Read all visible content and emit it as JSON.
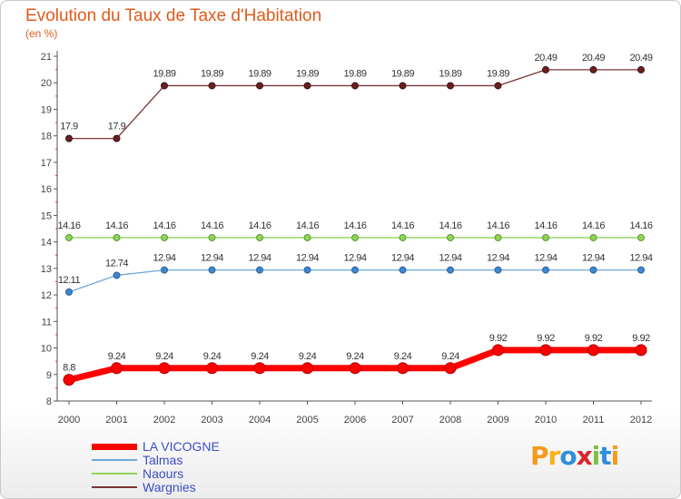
{
  "chart_data": {
    "type": "line",
    "title": "Evolution du Taux de Taxe d'Habitation",
    "subtitle": "(en %)",
    "xlabel": "",
    "ylabel": "",
    "categories": [
      "2000",
      "2001",
      "2002",
      "2003",
      "2004",
      "2005",
      "2006",
      "2007",
      "2008",
      "2009",
      "2010",
      "2011",
      "2012"
    ],
    "ylim": [
      8,
      21
    ],
    "yticks": [
      8,
      9,
      10,
      11,
      12,
      13,
      14,
      15,
      16,
      17,
      18,
      19,
      20,
      21
    ],
    "grid": false,
    "legend_position": "bottom-left",
    "series": [
      {
        "name": "LA VICOGNE",
        "color": "#ff0000",
        "labels": [
          "8.8",
          "9.24",
          "9.24",
          "9.24",
          "9.24",
          "9.24",
          "9.24",
          "9.24",
          "9.24",
          "9.92",
          "9.92",
          "9.92",
          "9.92"
        ],
        "values": [
          8.8,
          9.24,
          9.24,
          9.24,
          9.24,
          9.24,
          9.24,
          9.24,
          9.24,
          9.92,
          9.92,
          9.92,
          9.92
        ]
      },
      {
        "name": "Talmas",
        "color": "#6fa8dc",
        "labels": [
          "12.11",
          "12.74",
          "12.94",
          "12.94",
          "12.94",
          "12.94",
          "12.94",
          "12.94",
          "12.94",
          "12.94",
          "12.94",
          "12.94",
          "12.94"
        ],
        "values": [
          12.11,
          12.74,
          12.94,
          12.94,
          12.94,
          12.94,
          12.94,
          12.94,
          12.94,
          12.94,
          12.94,
          12.94,
          12.94
        ]
      },
      {
        "name": "Naours",
        "color": "#8fd35a",
        "labels": [
          "14.16",
          "14.16",
          "14.16",
          "14.16",
          "14.16",
          "14.16",
          "14.16",
          "14.16",
          "14.16",
          "14.16",
          "14.16",
          "14.16",
          "14.16"
        ],
        "values": [
          14.16,
          14.16,
          14.16,
          14.16,
          14.16,
          14.16,
          14.16,
          14.16,
          14.16,
          14.16,
          14.16,
          14.16,
          14.16
        ]
      },
      {
        "name": "Wargnies",
        "color": "#7a3535",
        "labels": [
          "17.9",
          "17.9",
          "19.89",
          "19.89",
          "19.89",
          "19.89",
          "19.89",
          "19.89",
          "19.89",
          "19.89",
          "20.49",
          "20.49",
          "20.49"
        ],
        "values": [
          17.9,
          17.9,
          19.89,
          19.89,
          19.89,
          19.89,
          19.89,
          19.89,
          19.89,
          19.89,
          20.49,
          20.49,
          20.49
        ]
      }
    ]
  },
  "logo": {
    "letters": [
      "P",
      "r",
      "o",
      "x",
      "i",
      "t",
      "i"
    ],
    "colors": [
      "#f59a1b",
      "#f7b21a",
      "#2f8fd8",
      "#d9262a",
      "#7cc242",
      "#2f8fd8",
      "#f59a1b"
    ]
  }
}
